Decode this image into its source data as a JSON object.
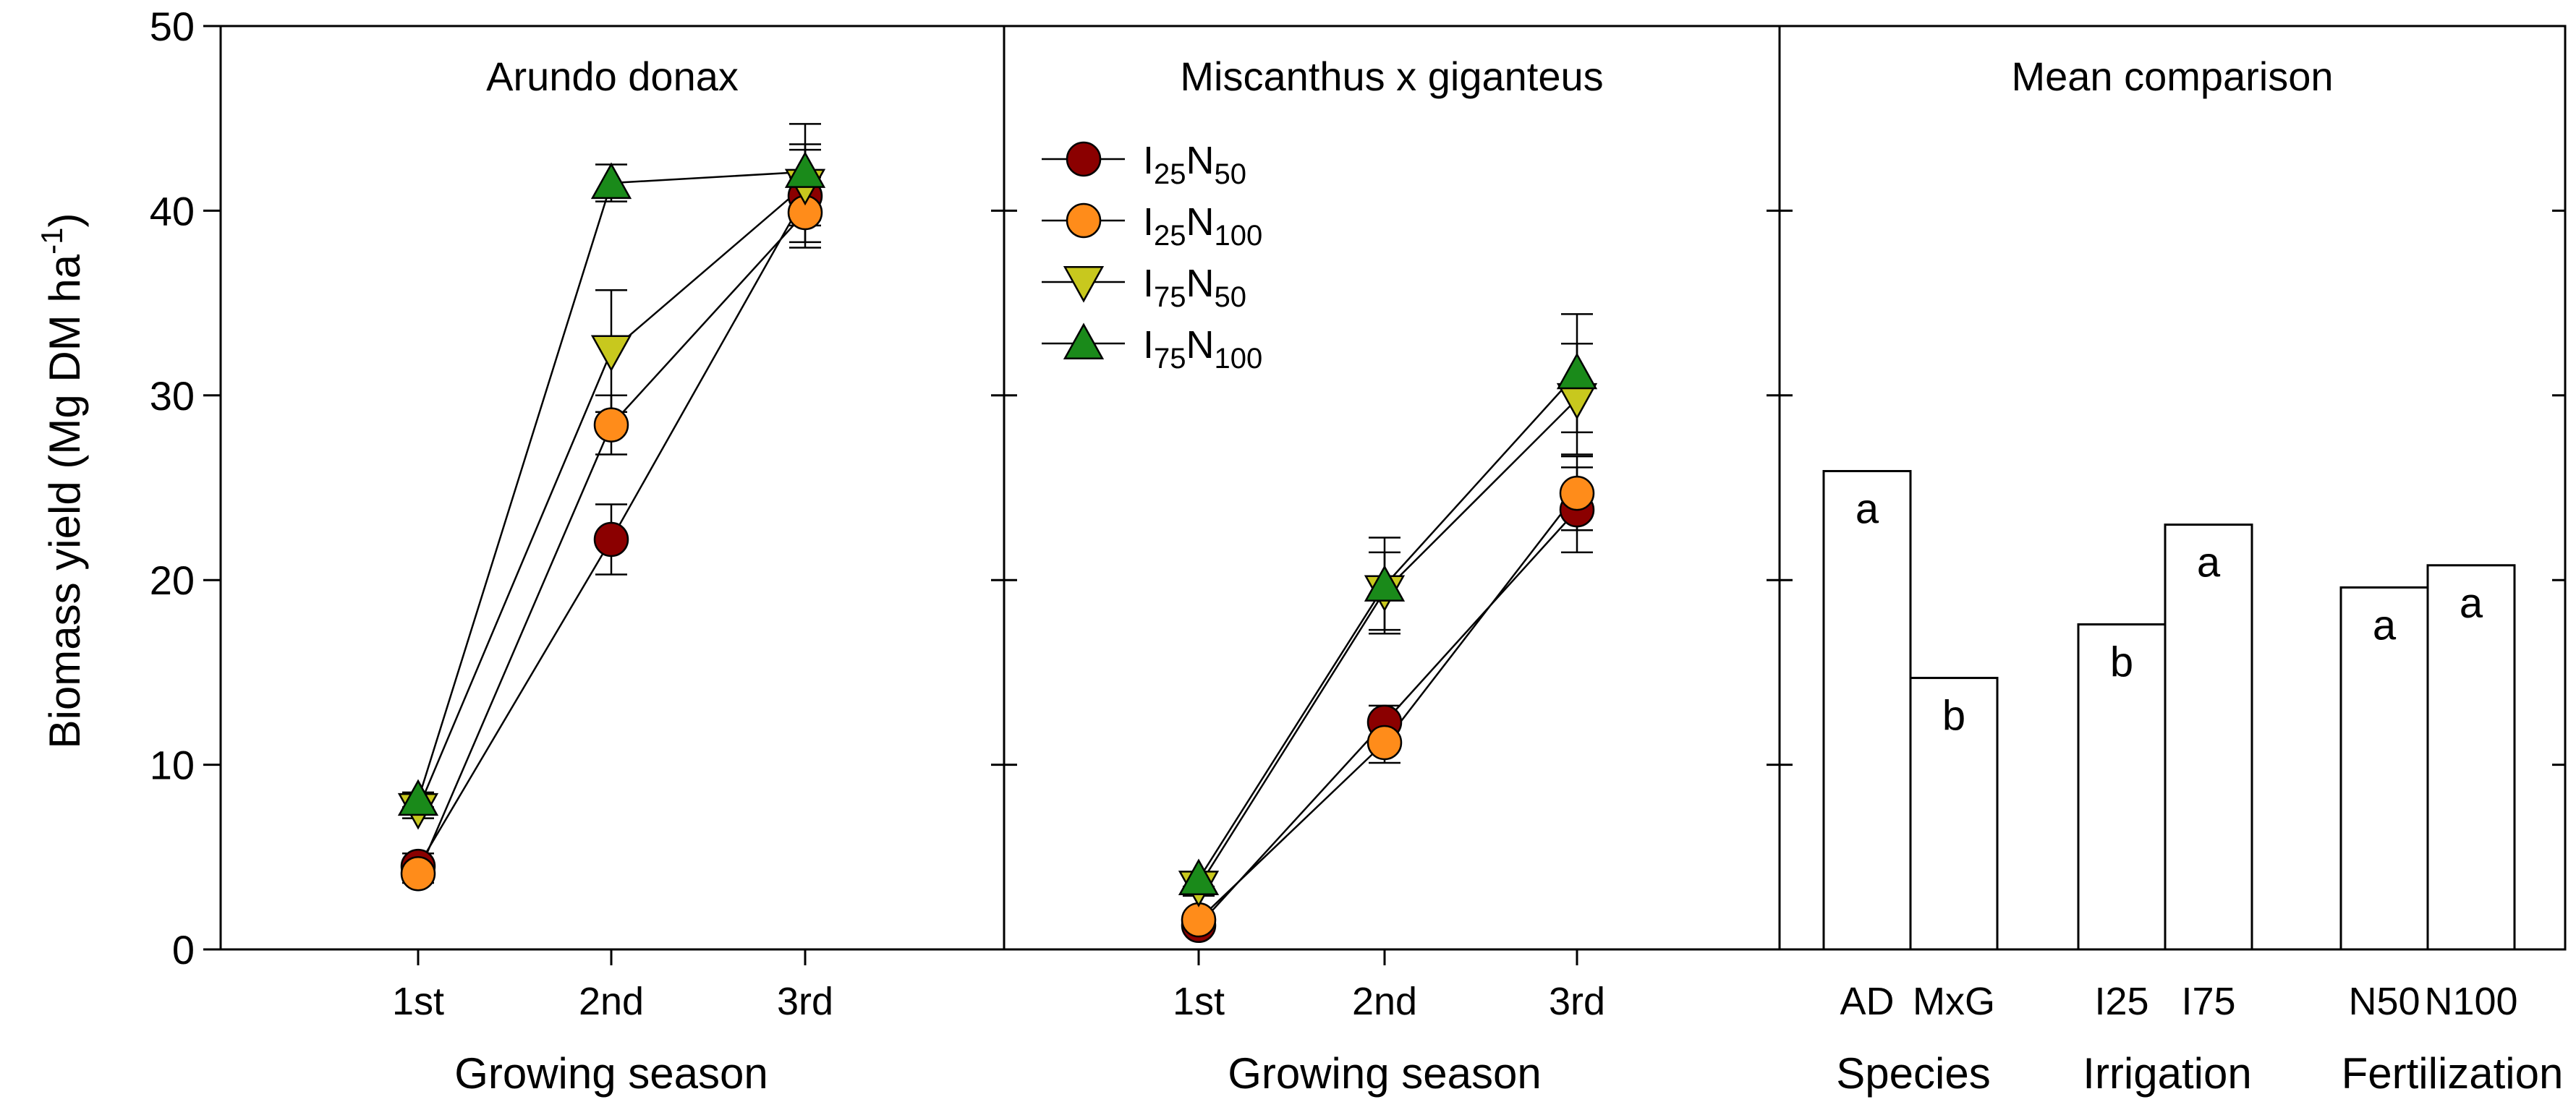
{
  "figure": {
    "ylabel": "Biomass yield (Mg DM ha",
    "ylabel_sup": "-1",
    "ylabel_end": ")",
    "yticks": [
      "0",
      "10",
      "20",
      "30",
      "40",
      "50"
    ]
  },
  "legend": [
    {
      "base": "I",
      "sub1": "25",
      "mid": "N",
      "sub2": "50",
      "marker": "circle",
      "color": "#8b0000"
    },
    {
      "base": "I",
      "sub1": "25",
      "mid": "N",
      "sub2": "100",
      "marker": "circle",
      "color": "#ff8c1a"
    },
    {
      "base": "I",
      "sub1": "75",
      "mid": "N",
      "sub2": "50",
      "marker": "triangle-down",
      "color": "#c8c81e"
    },
    {
      "base": "I",
      "sub1": "75",
      "mid": "N",
      "sub2": "100",
      "marker": "triangle-up",
      "color": "#1a8a1a"
    }
  ],
  "chart_data": [
    {
      "type": "line",
      "title": "Arundo donax",
      "xlabel": "Growing season",
      "ylabel": "Biomass yield (Mg DM ha-1)",
      "categories": [
        "1st",
        "2nd",
        "3rd"
      ],
      "ylim": [
        0,
        50
      ],
      "series": [
        {
          "name": "I25N50",
          "values": [
            4.5,
            22.2,
            40.8
          ],
          "err": [
            0.7,
            1.9,
            2.5
          ]
        },
        {
          "name": "I25N100",
          "values": [
            4.1,
            28.4,
            39.9
          ],
          "err": [
            0.5,
            1.6,
            1.9
          ]
        },
        {
          "name": "I75N50",
          "values": [
            7.6,
            32.4,
            41.4
          ],
          "err": [
            0.5,
            3.3,
            2.2
          ]
        },
        {
          "name": "I75N100",
          "values": [
            8.1,
            41.5,
            42.1
          ],
          "err": [
            0.4,
            1.0,
            2.6
          ]
        }
      ]
    },
    {
      "type": "line",
      "title": "Miscanthus x giganteus",
      "xlabel": "Growing season",
      "categories": [
        "1st",
        "2nd",
        "3rd"
      ],
      "ylim": [
        0,
        50
      ],
      "series": [
        {
          "name": "I25N50",
          "values": [
            1.3,
            12.3,
            23.8
          ],
          "err": [
            0.3,
            0.9,
            2.3
          ]
        },
        {
          "name": "I25N100",
          "values": [
            1.6,
            11.2,
            24.7
          ],
          "err": [
            0.3,
            1.1,
            2.0
          ]
        },
        {
          "name": "I75N50",
          "values": [
            3.4,
            19.4,
            29.8
          ],
          "err": [
            0.5,
            2.1,
            3.0
          ]
        },
        {
          "name": "I75N100",
          "values": [
            3.8,
            19.7,
            31.2
          ],
          "err": [
            0.4,
            2.6,
            3.2
          ]
        }
      ]
    },
    {
      "type": "bar",
      "title": "Mean comparison",
      "ylim": [
        0,
        50
      ],
      "groups": [
        {
          "label": "Species",
          "categories": [
            "AD",
            "MxG"
          ],
          "values": [
            25.9,
            14.7
          ],
          "letters": [
            "a",
            "b"
          ]
        },
        {
          "label": "Irrigation",
          "categories": [
            "I25",
            "I75"
          ],
          "values": [
            17.6,
            23.0
          ],
          "letters": [
            "b",
            "a"
          ]
        },
        {
          "label": "Fertilization",
          "categories": [
            "N50",
            "N100"
          ],
          "values": [
            19.6,
            20.8
          ],
          "letters": [
            "a",
            "a"
          ]
        }
      ]
    }
  ]
}
